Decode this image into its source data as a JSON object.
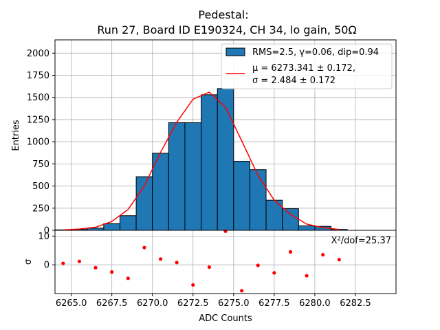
{
  "chart_data": {
    "type": "bar",
    "title_line1": "Pedestal:",
    "title_line2": "Run 27, Board ID E190324, CH 34, lo gain, 50Ω",
    "xlabel": "ADC Counts",
    "ylabel": "Entries",
    "residual_ylabel": "σ",
    "xlim": [
      6264.0,
      6285.0
    ],
    "ylim": [
      0,
      2150
    ],
    "residual_ylim": [
      -10,
      12
    ],
    "grid": true,
    "legend_placement": "top-right",
    "x_ticks": [
      "6265.0",
      "6267.5",
      "6270.0",
      "6272.5",
      "6275.0",
      "6277.5",
      "6280.0",
      "6282.5"
    ],
    "x_tick_values": [
      6265.0,
      6267.5,
      6270.0,
      6272.5,
      6275.0,
      6277.5,
      6280.0,
      6282.5
    ],
    "y_ticks": [
      "0",
      "250",
      "500",
      "750",
      "1000",
      "1250",
      "1500",
      "1750",
      "2000"
    ],
    "y_tick_values": [
      0,
      250,
      500,
      750,
      1000,
      1250,
      1500,
      1750,
      2000
    ],
    "residual_y_ticks": [
      "0",
      "10"
    ],
    "residual_y_tick_values": [
      0,
      10
    ],
    "histogram": {
      "name": "RMS=2.5, γ=0.06, dip=0.94",
      "color": "#1f77b4",
      "bin_edges": [
        6264,
        6265,
        6266,
        6267,
        6268,
        6269,
        6270,
        6271,
        6272,
        6273,
        6274,
        6275,
        6276,
        6277,
        6278,
        6279,
        6280,
        6281,
        6282
      ],
      "values": [
        5,
        10,
        25,
        75,
        165,
        605,
        870,
        1215,
        1215,
        1530,
        1600,
        780,
        685,
        340,
        245,
        50,
        45,
        10
      ]
    },
    "fit": {
      "name_line1": "μ = 6273.341 ± 0.172,",
      "name_line2": "σ = 2.484 ± 0.172",
      "color": "#ff0000",
      "x": [
        6264.5,
        6265.5,
        6266.5,
        6267.5,
        6268.5,
        6269.5,
        6270.5,
        6271.5,
        6272.5,
        6273.5,
        6274.5,
        6275.5,
        6276.5,
        6277.5,
        6278.5,
        6279.5,
        6280.5,
        6281.5
      ],
      "y": [
        5,
        15,
        35,
        100,
        235,
        500,
        880,
        1220,
        1480,
        1560,
        1390,
        1010,
        620,
        340,
        180,
        70,
        30,
        10
      ]
    },
    "residuals": {
      "color": "#ff0000",
      "x": [
        6264.5,
        6265.5,
        6266.5,
        6267.5,
        6268.5,
        6269.5,
        6270.5,
        6271.5,
        6272.5,
        6273.5,
        6274.5,
        6275.5,
        6276.5,
        6277.5,
        6278.5,
        6279.5,
        6280.5,
        6281.5
      ],
      "y": [
        0.5,
        1.2,
        -1.0,
        -2.5,
        -4.7,
        6.0,
        2.0,
        0.8,
        -7.0,
        -0.8,
        11.7,
        -9.0,
        -0.2,
        -2.8,
        4.5,
        -3.8,
        3.5,
        1.8
      ]
    },
    "chi2_label": "X²/dof=25.37"
  }
}
